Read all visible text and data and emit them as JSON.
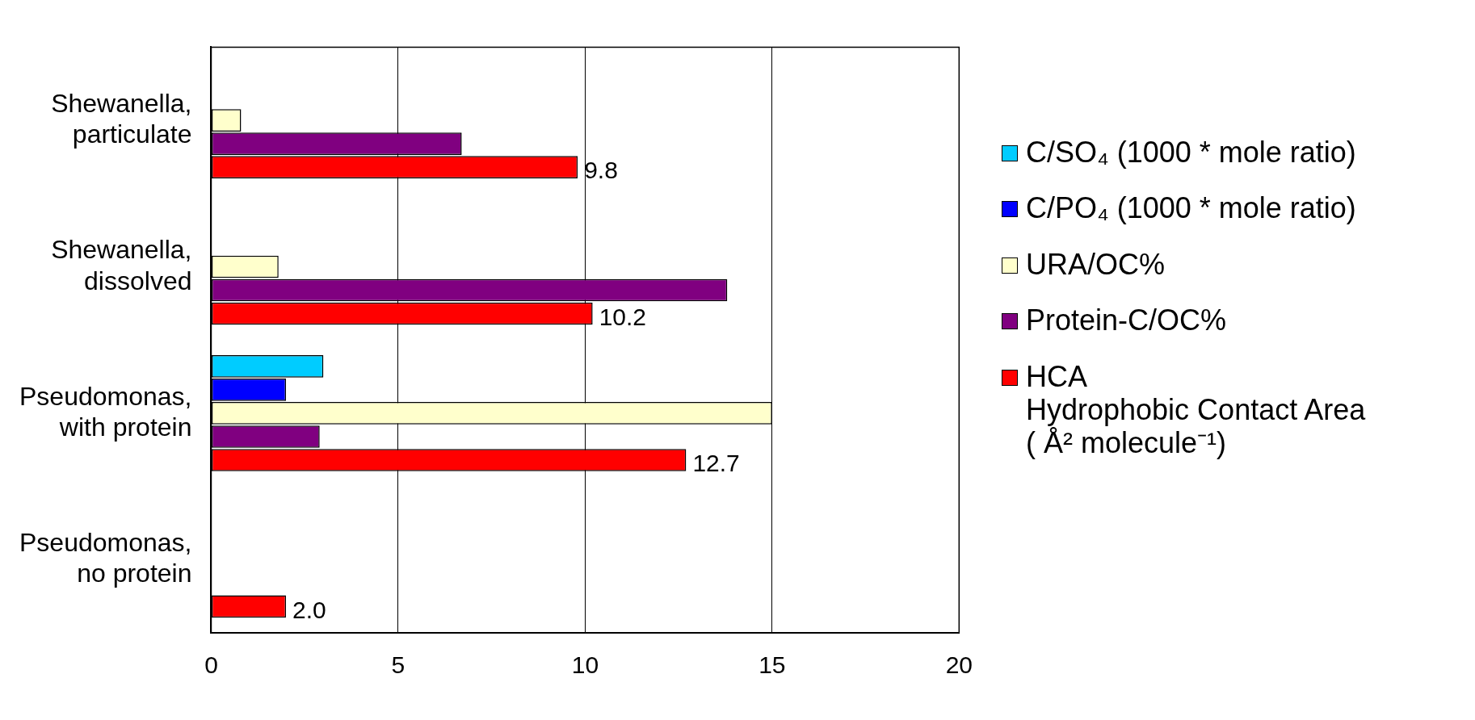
{
  "chart_data": {
    "type": "bar",
    "orientation": "horizontal",
    "categories": [
      "Shewanella,\nparticulate",
      "Shewanella,\ndissolved",
      "Pseudomonas,\nwith protein",
      "Pseudomonas,\nno protein"
    ],
    "series": [
      {
        "name": "C/SO₄ (1000 * mole ratio)",
        "color": "#00ccff",
        "values": [
          null,
          null,
          3.0,
          null
        ]
      },
      {
        "name": "C/PO₄ (1000 * mole ratio)",
        "color": "#0000ff",
        "values": [
          null,
          null,
          2.0,
          null
        ]
      },
      {
        "name": "URA/OC%",
        "color": "#ffffcc",
        "values": [
          0.8,
          1.8,
          15.0,
          null
        ]
      },
      {
        "name": "Protein-C/OC%",
        "color": "#800080",
        "values": [
          6.7,
          13.8,
          2.9,
          null
        ]
      },
      {
        "name": "HCA\nHydrophobic Contact Area\n( Å² molecule⁻¹)",
        "color": "#ff0000",
        "values": [
          9.8,
          10.2,
          12.7,
          2.0
        ],
        "value_labels": [
          "9.8",
          "10.2",
          "12.7",
          "2.0"
        ]
      }
    ],
    "xlim": [
      0,
      20
    ],
    "xticks": [
      0,
      5,
      10,
      15,
      20
    ],
    "grid": "x",
    "legend": "right"
  }
}
